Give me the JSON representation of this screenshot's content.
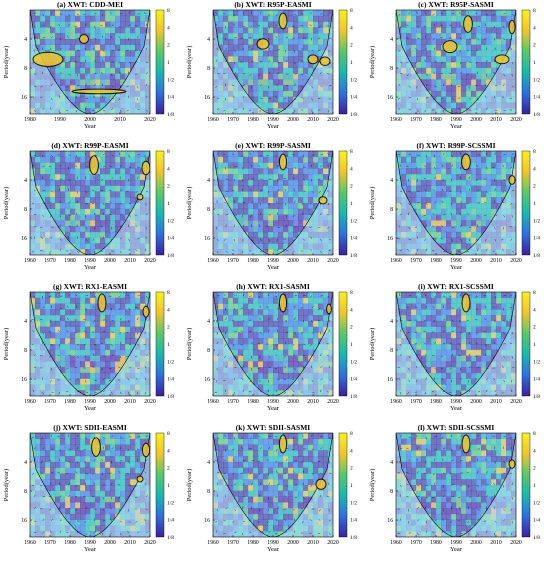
{
  "figure": {
    "colorbar_ticks": [
      "8",
      "4",
      "2",
      "1",
      "1/2",
      "1/4",
      "1/8"
    ],
    "xlabel": "Year",
    "colors": {
      "low": "#3b1f9e",
      "mid_low": "#2f6fe0",
      "mid": "#17b8b0",
      "mid_high": "#57c96a",
      "high": "#f0c52a",
      "top": "#f9f21a",
      "outside_coi": "#b5e0f0",
      "outside_coi_band": "#c9b8e6"
    }
  },
  "chart_data": [
    {
      "type": "heatmap",
      "title": "(a) XWT: CDD-MEI",
      "ylabel": "Period(year)",
      "xlabel": "Year",
      "xlim": [
        1980,
        2020
      ],
      "xticks": [
        "1980",
        "1990",
        "2000",
        "2010",
        "2020"
      ],
      "ylim": [
        2,
        24
      ],
      "yticks": [
        "4",
        "8",
        "16"
      ],
      "colorbar_ticks": [
        "8",
        "4",
        "2",
        "1",
        "1/2",
        "1/4",
        "1/8"
      ],
      "significant_regions": [
        {
          "x": 1986,
          "y": 6.5,
          "rx": 5,
          "ry": 1.6
        },
        {
          "x": 2003,
          "y": 14,
          "rx": 9,
          "ry": 1.1
        },
        {
          "x": 1998,
          "y": 4,
          "rx": 1.5,
          "ry": 0.6
        }
      ]
    },
    {
      "type": "heatmap",
      "title": "(b) XWT: R95P-EASMI",
      "ylabel": "Period(year)",
      "xlabel": "Year",
      "xlim": [
        1960,
        2020
      ],
      "xticks": [
        "1960",
        "1970",
        "1980",
        "1990",
        "2000",
        "2010",
        "2020"
      ],
      "ylim": [
        2,
        24
      ],
      "yticks": [
        "4",
        "8",
        "16"
      ],
      "colorbar_ticks": [
        "8",
        "4",
        "2",
        "1",
        "1/2",
        "1/4",
        "1/8"
      ],
      "significant_regions": [
        {
          "x": 1985,
          "y": 4.5,
          "rx": 3,
          "ry": 0.8
        },
        {
          "x": 1995,
          "y": 2.6,
          "rx": 2,
          "ry": 0.7
        },
        {
          "x": 2010,
          "y": 6.5,
          "rx": 2.5,
          "ry": 1.0
        },
        {
          "x": 2016,
          "y": 6.8,
          "rx": 2.5,
          "ry": 1.0
        }
      ]
    },
    {
      "type": "heatmap",
      "title": "(c) XWT: R95P-SASMI",
      "ylabel": "Period(year)",
      "xlabel": "Year",
      "xlim": [
        1960,
        2020
      ],
      "xticks": [
        "1960",
        "1970",
        "1980",
        "1990",
        "2000",
        "2010",
        "2020"
      ],
      "ylim": [
        2,
        24
      ],
      "yticks": [
        "4",
        "8",
        "16"
      ],
      "colorbar_ticks": [
        "8",
        "4",
        "2",
        "1",
        "1/2",
        "1/4",
        "1/8"
      ],
      "significant_regions": [
        {
          "x": 1987,
          "y": 4.8,
          "rx": 3.5,
          "ry": 1.0
        },
        {
          "x": 1996,
          "y": 2.8,
          "rx": 2.2,
          "ry": 0.8
        },
        {
          "x": 2013,
          "y": 6.5,
          "rx": 3.5,
          "ry": 1.0
        },
        {
          "x": 2018,
          "y": 3.0,
          "rx": 1.5,
          "ry": 0.7
        }
      ]
    },
    {
      "type": "heatmap",
      "title": "(d) XWT: R99P-EASMI",
      "ylabel": "Period(year)",
      "xlabel": "Year",
      "xlim": [
        1960,
        2020
      ],
      "xticks": [
        "1960",
        "1970",
        "1980",
        "1990",
        "2000",
        "2010",
        "2020"
      ],
      "ylim": [
        2,
        24
      ],
      "yticks": [
        "4",
        "8",
        "16"
      ],
      "colorbar_ticks": [
        "8",
        "4",
        "2",
        "1",
        "1/2",
        "1/4",
        "1/8"
      ],
      "significant_regions": [
        {
          "x": 1992,
          "y": 2.8,
          "rx": 2.2,
          "ry": 0.9
        },
        {
          "x": 2018,
          "y": 3.0,
          "rx": 2.0,
          "ry": 0.7
        },
        {
          "x": 2015,
          "y": 6.0,
          "rx": 1.5,
          "ry": 0.6
        }
      ]
    },
    {
      "type": "heatmap",
      "title": "(e) XWT: R99P-SASMI",
      "ylabel": "Period(year)",
      "xlabel": "Year",
      "xlim": [
        1960,
        2020
      ],
      "xticks": [
        "1960",
        "1970",
        "1980",
        "1990",
        "2000",
        "2010",
        "2020"
      ],
      "ylim": [
        2,
        24
      ],
      "yticks": [
        "4",
        "8",
        "16"
      ],
      "colorbar_ticks": [
        "8",
        "4",
        "2",
        "1",
        "1/2",
        "1/4",
        "1/8"
      ],
      "significant_regions": [
        {
          "x": 1995,
          "y": 2.6,
          "rx": 1.8,
          "ry": 0.7
        },
        {
          "x": 2015,
          "y": 6.5,
          "rx": 2.0,
          "ry": 0.8
        }
      ]
    },
    {
      "type": "heatmap",
      "title": "(f) XWT: R99P-SCSSMI",
      "ylabel": "Period(year)",
      "xlabel": "Year",
      "xlim": [
        1960,
        2020
      ],
      "xticks": [
        "1960",
        "1970",
        "1980",
        "1990",
        "2000",
        "2010",
        "2020"
      ],
      "ylim": [
        2,
        24
      ],
      "yticks": [
        "4",
        "8",
        "16"
      ],
      "colorbar_ticks": [
        "8",
        "4",
        "2",
        "1",
        "1/2",
        "1/4",
        "1/8"
      ],
      "significant_regions": [
        {
          "x": 1995,
          "y": 2.6,
          "rx": 2.2,
          "ry": 0.7
        },
        {
          "x": 2018,
          "y": 4.0,
          "rx": 1.5,
          "ry": 0.6
        }
      ]
    },
    {
      "type": "heatmap",
      "title": "(g) XWT: RX1-EASMI",
      "ylabel": "Period(year)",
      "xlabel": "Year",
      "xlim": [
        1960,
        2020
      ],
      "xticks": [
        "1960",
        "1970",
        "1980",
        "1990",
        "2000",
        "2010",
        "2020"
      ],
      "ylim": [
        2,
        24
      ],
      "yticks": [
        "4",
        "8",
        "16"
      ],
      "colorbar_ticks": [
        "8",
        "4",
        "2",
        "1",
        "1/2",
        "1/4",
        "1/8"
      ],
      "significant_regions": [
        {
          "x": 1996,
          "y": 2.6,
          "rx": 2.0,
          "ry": 0.8
        },
        {
          "x": 2018,
          "y": 3.2,
          "rx": 1.5,
          "ry": 0.6
        }
      ]
    },
    {
      "type": "heatmap",
      "title": "(h) XWT: RX1-SASMI",
      "ylabel": "Period(year)",
      "xlabel": "Year",
      "xlim": [
        1960,
        2020
      ],
      "xticks": [
        "1960",
        "1970",
        "1980",
        "1990",
        "2000",
        "2010",
        "2020"
      ],
      "ylim": [
        2,
        24
      ],
      "yticks": [
        "4",
        "8",
        "16"
      ],
      "colorbar_ticks": [
        "8",
        "4",
        "2",
        "1",
        "1/2",
        "1/4",
        "1/8"
      ],
      "significant_regions": [
        {
          "x": 1995,
          "y": 2.6,
          "rx": 1.8,
          "ry": 0.8
        },
        {
          "x": 2018,
          "y": 3.0,
          "rx": 1.2,
          "ry": 0.5
        }
      ]
    },
    {
      "type": "heatmap",
      "title": "(i) XWT: RX1-SCSSMI",
      "ylabel": "Period(year)",
      "xlabel": "Year",
      "xlim": [
        1960,
        2020
      ],
      "xticks": [
        "1960",
        "1970",
        "1980",
        "1990",
        "2000",
        "2010",
        "2020"
      ],
      "ylim": [
        2,
        24
      ],
      "yticks": [
        "4",
        "8",
        "16"
      ],
      "colorbar_ticks": [
        "8",
        "4",
        "2",
        "1",
        "1/2",
        "1/4",
        "1/8"
      ],
      "significant_regions": [
        {
          "x": 1995,
          "y": 2.6,
          "rx": 2.0,
          "ry": 0.8
        }
      ]
    },
    {
      "type": "heatmap",
      "title": "(j) XWT: SDII-EASMI",
      "ylabel": "Period(year)",
      "xlabel": "Year",
      "xlim": [
        1960,
        2020
      ],
      "xticks": [
        "1960",
        "1970",
        "1980",
        "1990",
        "2000",
        "2010",
        "2020"
      ],
      "ylim": [
        2,
        24
      ],
      "yticks": [
        "4",
        "8",
        "16"
      ],
      "colorbar_ticks": [
        "8",
        "4",
        "2",
        "1",
        "1/2",
        "1/4",
        "1/8"
      ],
      "significant_regions": [
        {
          "x": 1993,
          "y": 2.8,
          "rx": 2.2,
          "ry": 0.9
        },
        {
          "x": 2018,
          "y": 3.0,
          "rx": 1.8,
          "ry": 0.7
        },
        {
          "x": 2015,
          "y": 6.0,
          "rx": 1.5,
          "ry": 0.6
        }
      ]
    },
    {
      "type": "heatmap",
      "title": "(k) XWT: SDII-SASMI",
      "ylabel": "Period(year)",
      "xlabel": "Year",
      "xlim": [
        1960,
        2020
      ],
      "xticks": [
        "1960",
        "1970",
        "1980",
        "1990",
        "2000",
        "2010",
        "2020"
      ],
      "ylim": [
        2,
        24
      ],
      "yticks": [
        "4",
        "8",
        "16"
      ],
      "colorbar_ticks": [
        "8",
        "4",
        "2",
        "1",
        "1/2",
        "1/4",
        "1/8"
      ],
      "significant_regions": [
        {
          "x": 1995,
          "y": 2.6,
          "rx": 1.8,
          "ry": 0.8
        },
        {
          "x": 2014,
          "y": 6.8,
          "rx": 2.5,
          "ry": 1.2
        }
      ]
    },
    {
      "type": "heatmap",
      "title": "(l) XWT: SDII-SCSSMI",
      "ylabel": "Period(year)",
      "xlabel": "Year",
      "xlim": [
        1960,
        2020
      ],
      "xticks": [
        "1960",
        "1970",
        "1980",
        "1990",
        "2000",
        "2010",
        "2020"
      ],
      "ylim": [
        2,
        24
      ],
      "yticks": [
        "4",
        "8",
        "16"
      ],
      "colorbar_ticks": [
        "8",
        "4",
        "2",
        "1",
        "1/2",
        "1/4",
        "1/8"
      ],
      "significant_regions": [
        {
          "x": 1995,
          "y": 2.6,
          "rx": 2.0,
          "ry": 0.8
        },
        {
          "x": 2018,
          "y": 4.2,
          "rx": 1.5,
          "ry": 0.6
        }
      ]
    }
  ]
}
